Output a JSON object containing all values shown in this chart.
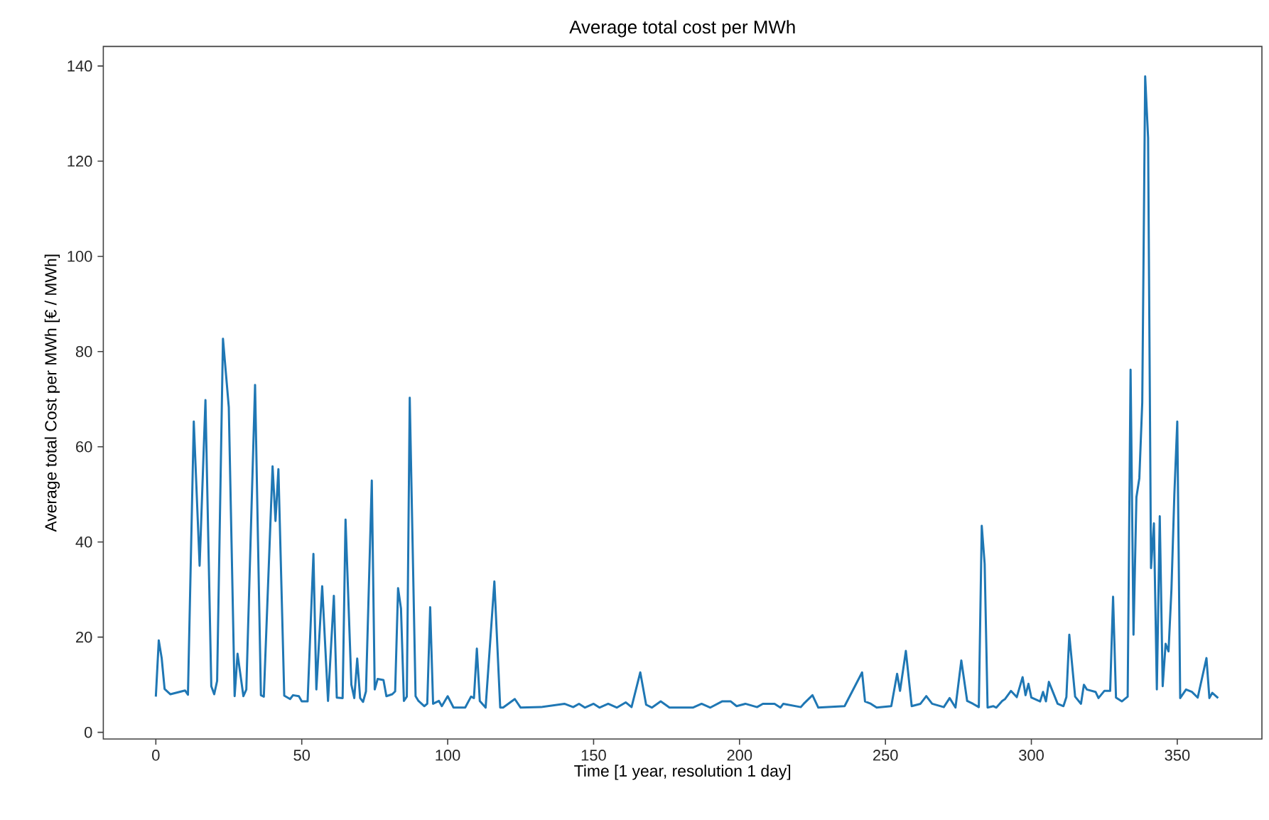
{
  "chart_data": {
    "type": "line",
    "title": "Average total cost per MWh",
    "xlabel": "Time [1 year, resolution 1 day]",
    "ylabel": "Average total Cost per MWh [€ / MWh]",
    "color": "#1f77b4",
    "line_style": "solid",
    "xlim": [
      -18,
      379
    ],
    "ylim": [
      -1.4,
      144.1
    ],
    "xticks": [
      0,
      50,
      100,
      150,
      200,
      250,
      300,
      350
    ],
    "yticks": [
      0,
      20,
      40,
      60,
      80,
      100,
      120,
      140
    ],
    "x": [
      0,
      1,
      2,
      3,
      5,
      10,
      11,
      13,
      15,
      17,
      19,
      20,
      21,
      23,
      25,
      27,
      28,
      30,
      31,
      34,
      36,
      37,
      40,
      41,
      42,
      44,
      46,
      47,
      49,
      50,
      52,
      54,
      55,
      57,
      59,
      61,
      62,
      64,
      65,
      67,
      68,
      69,
      70,
      71,
      72,
      74,
      75,
      76,
      78,
      79,
      81,
      82,
      83,
      84,
      85,
      86,
      87,
      89,
      90,
      92,
      93,
      94,
      95,
      97,
      98,
      100,
      102,
      106,
      108,
      109,
      110,
      111,
      113,
      116,
      118,
      119,
      123,
      125,
      132,
      140,
      143,
      145,
      147,
      150,
      152,
      155,
      158,
      161,
      163,
      166,
      168,
      170,
      173,
      176,
      184,
      187,
      190,
      194,
      197,
      199,
      202,
      206,
      208,
      212,
      214,
      215,
      221,
      222,
      225,
      227,
      236,
      242,
      243,
      245,
      247,
      252,
      254,
      255,
      257,
      259,
      262,
      264,
      266,
      270,
      272,
      274,
      276,
      278,
      280,
      282,
      283,
      284,
      285,
      287,
      288,
      290,
      291,
      293,
      295,
      297,
      298,
      299,
      300,
      303,
      304,
      305,
      306,
      309,
      311,
      312,
      313,
      315,
      317,
      318,
      319,
      322,
      323,
      325,
      327,
      328,
      329,
      331,
      333,
      334,
      335,
      336,
      337,
      338,
      339,
      340,
      341,
      342,
      343,
      344,
      345,
      346,
      347,
      348,
      349,
      350,
      351,
      353,
      355,
      357,
      360,
      361,
      362,
      364
    ],
    "values": [
      7.5,
      19.3,
      15.6,
      9.1,
      8,
      8.8,
      7.9,
      65.3,
      35,
      69.8,
      9.7,
      8,
      10.8,
      82.7,
      68.3,
      7.6,
      16.5,
      7.6,
      9,
      73,
      7.8,
      7.5,
      55.9,
      44.4,
      55.3,
      7.7,
      7,
      7.8,
      7.6,
      6.5,
      6.5,
      37.5,
      9,
      30.7,
      6.6,
      28.7,
      7.3,
      7.2,
      44.7,
      10,
      7.2,
      15.5,
      7.2,
      6.4,
      8.6,
      52.9,
      9,
      11.2,
      11,
      7.6,
      8,
      8.6,
      30.3,
      26,
      6.6,
      7.5,
      70.3,
      7.6,
      6.6,
      5.5,
      6,
      26.3,
      6,
      6.6,
      5.5,
      7.6,
      5.2,
      5.2,
      7.5,
      7.2,
      17.6,
      6.6,
      5.2,
      31.7,
      5.2,
      5.2,
      7,
      5.2,
      5.3,
      6,
      5.3,
      6,
      5.2,
      6,
      5.2,
      6,
      5.2,
      6.3,
      5.3,
      12.6,
      5.8,
      5.2,
      6.5,
      5.2,
      5.2,
      6,
      5.2,
      6.5,
      6.5,
      5.5,
      6,
      5.3,
      6,
      6,
      5.2,
      6,
      5.3,
      6,
      7.8,
      5.2,
      5.5,
      12.6,
      6.5,
      6,
      5.2,
      5.5,
      12.3,
      8.7,
      17.1,
      5.5,
      6,
      7.6,
      6,
      5.3,
      7.2,
      5.2,
      15.1,
      6.6,
      6,
      5.3,
      43.4,
      35.4,
      5.2,
      5.5,
      5.2,
      6.6,
      7,
      8.7,
      7.4,
      11.6,
      7.8,
      10.2,
      7.3,
      6.5,
      8.5,
      6.5,
      10.6,
      6,
      5.5,
      7.4,
      20.5,
      7.5,
      6,
      10,
      9,
      8.5,
      7.2,
      8.7,
      8.7,
      28.5,
      7.3,
      6.5,
      7.5,
      76.2,
      20.5,
      49.4,
      53.4,
      69.3,
      137.8,
      124.9,
      34.5,
      43.9,
      9,
      45.4,
      9.7,
      18.6,
      17,
      30,
      50,
      65.3,
      7.2,
      9,
      8.5,
      7.3,
      15.6,
      7.2,
      8.3,
      7.2
    ]
  }
}
